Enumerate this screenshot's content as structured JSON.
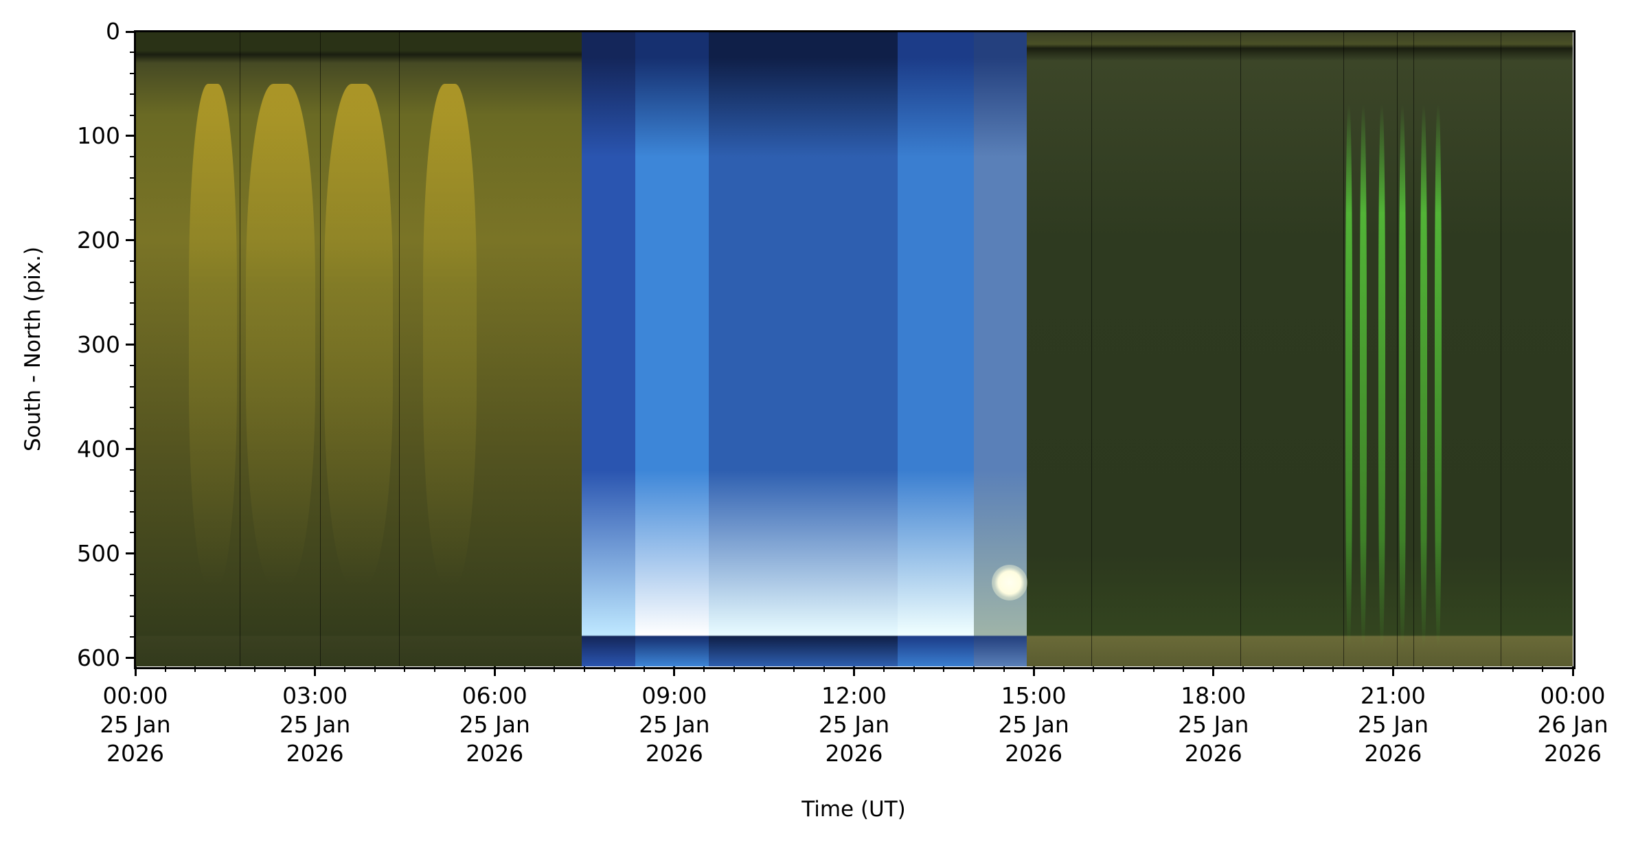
{
  "chart_data": {
    "type": "heatmap",
    "title": "",
    "xlabel": "Time (UT)",
    "ylabel": "South - North (pix.)",
    "xlim_hours": [
      0,
      24
    ],
    "ylim": [
      608,
      0
    ],
    "y_ticks": [
      0,
      100,
      200,
      300,
      400,
      500,
      600
    ],
    "y_minor_step": 20,
    "x_minor_step_hours": 0.5,
    "x_ticks": [
      {
        "hour": 0,
        "time": "00:00",
        "date": "25 Jan",
        "year": "2026"
      },
      {
        "hour": 3,
        "time": "03:00",
        "date": "25 Jan",
        "year": "2026"
      },
      {
        "hour": 6,
        "time": "06:00",
        "date": "25 Jan",
        "year": "2026"
      },
      {
        "hour": 9,
        "time": "09:00",
        "date": "25 Jan",
        "year": "2026"
      },
      {
        "hour": 12,
        "time": "12:00",
        "date": "25 Jan",
        "year": "2026"
      },
      {
        "hour": 15,
        "time": "15:00",
        "date": "25 Jan",
        "year": "2026"
      },
      {
        "hour": 18,
        "time": "18:00",
        "date": "25 Jan",
        "year": "2026"
      },
      {
        "hour": 21,
        "time": "21:00",
        "date": "25 Jan",
        "year": "2026"
      },
      {
        "hour": 24,
        "time": "00:00",
        "date": "26 Jan",
        "year": "2026"
      }
    ],
    "segments": [
      {
        "start": 0,
        "end": 7.45,
        "top": "#3a4020",
        "mid": "#8a8228",
        "bottom": "#2e3a1c"
      },
      {
        "start": 7.45,
        "end": 8.35,
        "top": "#14265a",
        "mid": "#2a55b0",
        "bottom": "#bfe8ff"
      },
      {
        "start": 8.35,
        "end": 9.58,
        "top": "#163070",
        "mid": "#3d86d8",
        "bottom": "#ffffff"
      },
      {
        "start": 9.58,
        "end": 12.73,
        "top": "#0f1f48",
        "mid": "#2e5fb0",
        "bottom": "#e8fbff"
      },
      {
        "start": 12.73,
        "end": 14.0,
        "top": "#1c3c88",
        "mid": "#3a7ed0",
        "bottom": "#f0ffff"
      },
      {
        "start": 14.0,
        "end": 14.88,
        "top": "#24407e",
        "mid": "#5a80b8",
        "bottom": "#9fb4a8"
      },
      {
        "start": 14.88,
        "end": 24,
        "top": "#3a4624",
        "mid": "#2e3a20",
        "bottom": "#344424"
      }
    ],
    "gaps_hours": [
      1.74,
      3.08,
      4.4,
      15.96,
      18.45,
      20.17,
      21.06,
      21.34,
      22.8
    ],
    "moon": {
      "hour": 14.6,
      "y": 528
    },
    "aurora_streaks_hours": [
      20.2,
      20.45,
      20.75,
      21.1,
      21.45,
      21.7
    ]
  }
}
